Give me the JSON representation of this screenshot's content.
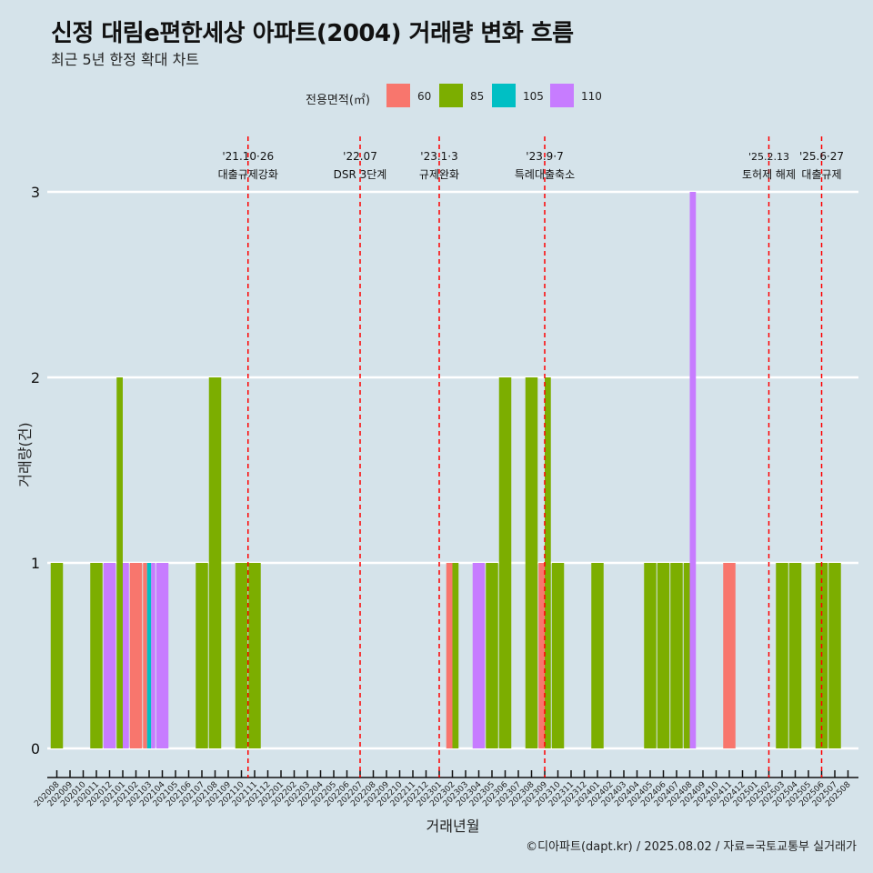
{
  "title": "신정 대림e편한세상 아파트(2004) 거래량 변화 흐름",
  "subtitle": "최근 5년 한정 확대 차트",
  "caption": "©디아파트(dapt.kr) / 2025.08.02 / 자료=국토교통부 실거래가",
  "colors": {
    "60": "#f8766d",
    "85": "#7cae00",
    "105": "#00bfc4",
    "110": "#c77cff",
    "vline": "#ff0000"
  },
  "chart_data": {
    "type": "bar",
    "xlabel": "거래년월",
    "ylabel": "거래량(건)",
    "ylim": [
      0,
      3
    ],
    "yticks": [
      0,
      1,
      2,
      3
    ],
    "legend_title": "전용면적(㎡)",
    "legend": [
      "60",
      "85",
      "105",
      "110"
    ],
    "categories": [
      "202008",
      "202009",
      "202010",
      "202011",
      "202012",
      "202101",
      "202102",
      "202103",
      "202104",
      "202105",
      "202106",
      "202107",
      "202108",
      "202109",
      "202110",
      "202111",
      "202112",
      "202201",
      "202202",
      "202203",
      "202204",
      "202205",
      "202206",
      "202207",
      "202208",
      "202209",
      "202210",
      "202211",
      "202212",
      "202301",
      "202302",
      "202303",
      "202304",
      "202305",
      "202306",
      "202307",
      "202308",
      "202309",
      "202310",
      "202311",
      "202312",
      "202401",
      "202402",
      "202403",
      "202404",
      "202405",
      "202406",
      "202407",
      "202408",
      "202409",
      "202410",
      "202411",
      "202412",
      "202501",
      "202502",
      "202503",
      "202504",
      "202505",
      "202506",
      "202507",
      "202508"
    ],
    "bars": [
      {
        "month": "202008",
        "groups": [
          [
            "85",
            1
          ]
        ]
      },
      {
        "month": "202011",
        "groups": [
          [
            "85",
            1
          ]
        ]
      },
      {
        "month": "202012",
        "groups": [
          [
            "110",
            1
          ]
        ]
      },
      {
        "month": "202101",
        "groups": [
          [
            "85",
            2
          ],
          [
            "110",
            1
          ]
        ]
      },
      {
        "month": "202102",
        "groups": [
          [
            "60",
            1
          ]
        ]
      },
      {
        "month": "202103",
        "groups": [
          [
            "60",
            1
          ],
          [
            "105",
            1
          ],
          [
            "110",
            1
          ]
        ]
      },
      {
        "month": "202104",
        "groups": [
          [
            "110",
            1
          ]
        ]
      },
      {
        "month": "202107",
        "groups": [
          [
            "85",
            1
          ]
        ]
      },
      {
        "month": "202108",
        "groups": [
          [
            "85",
            2
          ]
        ]
      },
      {
        "month": "202110",
        "groups": [
          [
            "85",
            1
          ]
        ]
      },
      {
        "month": "202111",
        "groups": [
          [
            "85",
            1
          ]
        ]
      },
      {
        "month": "202302",
        "groups": [
          [
            "60",
            1
          ],
          [
            "85",
            1
          ]
        ]
      },
      {
        "month": "202304",
        "groups": [
          [
            "110",
            1
          ]
        ]
      },
      {
        "month": "202305",
        "groups": [
          [
            "85",
            1
          ]
        ]
      },
      {
        "month": "202306",
        "groups": [
          [
            "85",
            2
          ]
        ]
      },
      {
        "month": "202308",
        "groups": [
          [
            "85",
            2
          ]
        ]
      },
      {
        "month": "202309",
        "groups": [
          [
            "60",
            1
          ],
          [
            "85",
            2
          ]
        ]
      },
      {
        "month": "202310",
        "groups": [
          [
            "85",
            1
          ]
        ]
      },
      {
        "month": "202401",
        "groups": [
          [
            "85",
            1
          ]
        ]
      },
      {
        "month": "202405",
        "groups": [
          [
            "85",
            1
          ]
        ]
      },
      {
        "month": "202406",
        "groups": [
          [
            "85",
            1
          ]
        ]
      },
      {
        "month": "202407",
        "groups": [
          [
            "85",
            1
          ]
        ]
      },
      {
        "month": "202408",
        "groups": [
          [
            "85",
            1
          ],
          [
            "110",
            3
          ]
        ]
      },
      {
        "month": "202411",
        "groups": [
          [
            "60",
            1
          ]
        ]
      },
      {
        "month": "202503",
        "groups": [
          [
            "85",
            1
          ]
        ]
      },
      {
        "month": "202504",
        "groups": [
          [
            "85",
            1
          ]
        ]
      },
      {
        "month": "202506",
        "groups": [
          [
            "85",
            1
          ]
        ]
      },
      {
        "month": "202507",
        "groups": [
          [
            "85",
            1
          ]
        ]
      }
    ],
    "events": [
      {
        "month": "202110.5",
        "date": "'21.10·26",
        "label": "대출규제강화"
      },
      {
        "month": "202207",
        "date": "'22.07",
        "label": "DSR 3단계"
      },
      {
        "month": "202301",
        "date": "'23.1·3",
        "label": "규제완화"
      },
      {
        "month": "202309",
        "date": "'23.9·7",
        "label": "특례대출축소"
      },
      {
        "month": "202502",
        "date": "'25.2.13",
        "label": "토허제 해제"
      },
      {
        "month": "202506",
        "date": "'25.6·27",
        "label": "대출규제"
      }
    ]
  }
}
